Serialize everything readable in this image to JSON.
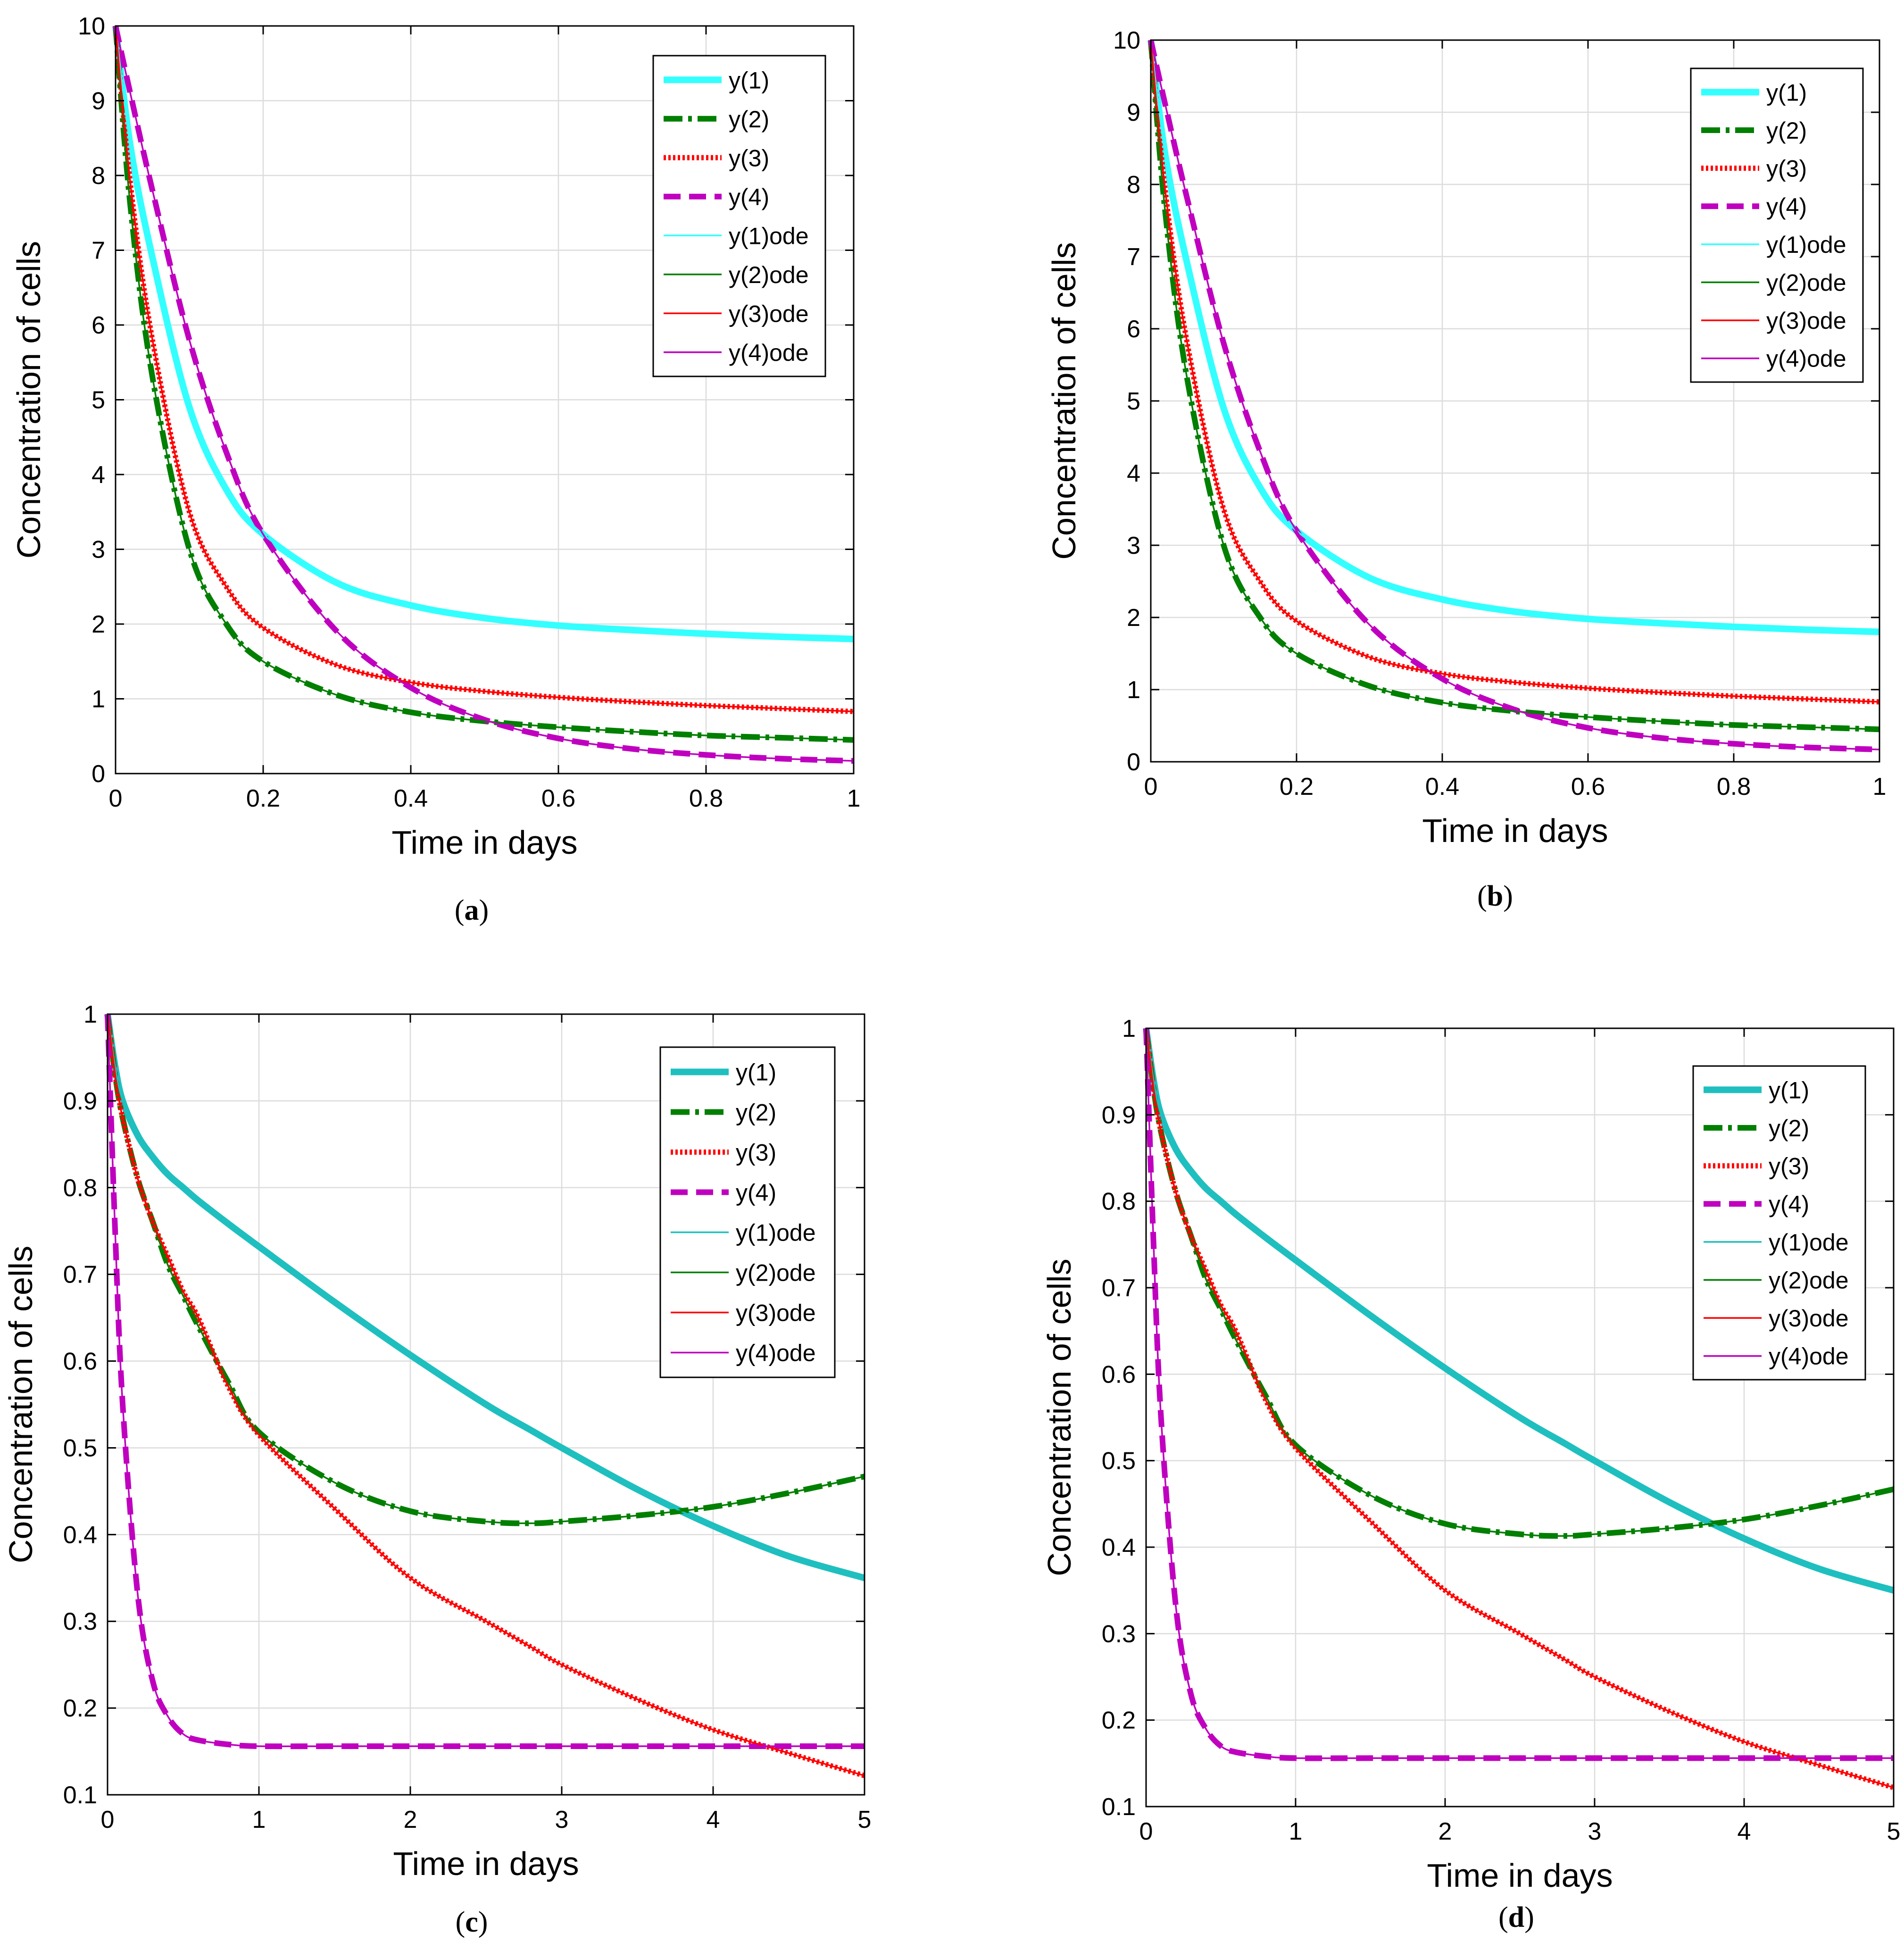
{
  "figure": {
    "panels": [
      {
        "id": "a",
        "caption_letter": "a"
      },
      {
        "id": "b",
        "caption_letter": "b"
      },
      {
        "id": "c",
        "caption_letter": "c"
      },
      {
        "id": "d",
        "caption_letter": "d"
      }
    ]
  },
  "colors": {
    "cyan_bright": "#33FFFF",
    "cyan_dark": "#1FBFBF",
    "green": "#007F00",
    "red": "#FF0000",
    "magenta": "#BF00BF",
    "grid": "#DCDCDC",
    "axis": "#000000"
  },
  "chart_data": [
    {
      "type": "line",
      "panel": "a",
      "xlabel": "Time in days",
      "ylabel": "Concentration of cells",
      "xlim": [
        0,
        1
      ],
      "ylim": [
        0,
        10
      ],
      "xticks": [
        0,
        0.2,
        0.4,
        0.6,
        0.8,
        1
      ],
      "xtick_labels": [
        "0",
        "0.2",
        "0.4",
        "0.6",
        "0.8",
        "1"
      ],
      "yticks": [
        0,
        1,
        2,
        3,
        4,
        5,
        6,
        7,
        8,
        9,
        10
      ],
      "ytick_labels": [
        "0",
        "1",
        "2",
        "3",
        "4",
        "5",
        "6",
        "7",
        "8",
        "9",
        "10"
      ],
      "grid": true,
      "legend": "top-right",
      "x": [
        0,
        0.02,
        0.05,
        0.1,
        0.15,
        0.2,
        0.3,
        0.4,
        0.5,
        0.6,
        0.7,
        0.8,
        0.9,
        1.0
      ],
      "series": [
        {
          "name": "y(1)",
          "values": [
            10,
            8.4,
            6.9,
            4.9,
            3.8,
            3.2,
            2.55,
            2.25,
            2.08,
            1.98,
            1.92,
            1.87,
            1.83,
            1.8
          ],
          "style": "thick-solid",
          "color": "#33FFFF"
        },
        {
          "name": "y(2)",
          "values": [
            10,
            7.6,
            5.3,
            3.0,
            2.0,
            1.5,
            1.05,
            0.82,
            0.7,
            0.62,
            0.56,
            0.51,
            0.48,
            0.45
          ],
          "style": "dashdot",
          "color": "#007F00"
        },
        {
          "name": "y(3)",
          "values": [
            10,
            7.9,
            5.8,
            3.5,
            2.5,
            1.95,
            1.45,
            1.22,
            1.1,
            1.02,
            0.96,
            0.91,
            0.87,
            0.83
          ],
          "style": "dotted",
          "color": "#FF0000"
        },
        {
          "name": "y(4)",
          "values": [
            10,
            9.1,
            7.8,
            5.8,
            4.3,
            3.2,
            1.9,
            1.15,
            0.72,
            0.47,
            0.33,
            0.25,
            0.2,
            0.17
          ],
          "style": "dashed",
          "color": "#BF00BF"
        },
        {
          "name": "y(1)ode",
          "values": [
            10,
            8.4,
            6.9,
            4.9,
            3.8,
            3.2,
            2.55,
            2.25,
            2.08,
            1.98,
            1.92,
            1.87,
            1.83,
            1.8
          ],
          "style": "thin-solid",
          "color": "#33FFFF"
        },
        {
          "name": "y(2)ode",
          "values": [
            10,
            7.6,
            5.3,
            3.0,
            2.0,
            1.5,
            1.05,
            0.82,
            0.7,
            0.62,
            0.56,
            0.51,
            0.48,
            0.45
          ],
          "style": "thin-solid",
          "color": "#007F00"
        },
        {
          "name": "y(3)ode",
          "values": [
            10,
            7.9,
            5.8,
            3.5,
            2.5,
            1.95,
            1.45,
            1.22,
            1.1,
            1.02,
            0.96,
            0.91,
            0.87,
            0.83
          ],
          "style": "thin-solid",
          "color": "#FF0000"
        },
        {
          "name": "y(4)ode",
          "values": [
            10,
            9.1,
            7.8,
            5.8,
            4.3,
            3.2,
            1.9,
            1.15,
            0.72,
            0.47,
            0.33,
            0.25,
            0.2,
            0.17
          ],
          "style": "thin-solid",
          "color": "#BF00BF"
        }
      ]
    },
    {
      "type": "line",
      "panel": "b",
      "xlabel": "Time in days",
      "ylabel": "Concentration of cells",
      "xlim": [
        0,
        1
      ],
      "ylim": [
        0,
        10
      ],
      "xticks": [
        0,
        0.2,
        0.4,
        0.6,
        0.8,
        1
      ],
      "xtick_labels": [
        "0",
        "0.2",
        "0.4",
        "0.6",
        "0.8",
        "1"
      ],
      "yticks": [
        0,
        1,
        2,
        3,
        4,
        5,
        6,
        7,
        8,
        9,
        10
      ],
      "ytick_labels": [
        "0",
        "1",
        "2",
        "3",
        "4",
        "5",
        "6",
        "7",
        "8",
        "9",
        "10"
      ],
      "grid": true,
      "legend": "top-right",
      "x": [
        0,
        0.02,
        0.05,
        0.1,
        0.15,
        0.2,
        0.3,
        0.4,
        0.5,
        0.6,
        0.7,
        0.8,
        0.9,
        1.0
      ],
      "series": [
        {
          "name": "y(1)",
          "values": [
            10,
            8.4,
            6.9,
            4.9,
            3.8,
            3.2,
            2.55,
            2.25,
            2.08,
            1.98,
            1.92,
            1.87,
            1.83,
            1.8
          ],
          "style": "thick-solid",
          "color": "#33FFFF"
        },
        {
          "name": "y(2)",
          "values": [
            10,
            7.6,
            5.3,
            3.0,
            2.0,
            1.5,
            1.05,
            0.82,
            0.7,
            0.62,
            0.56,
            0.51,
            0.48,
            0.45
          ],
          "style": "dashdot",
          "color": "#007F00"
        },
        {
          "name": "y(3)",
          "values": [
            10,
            7.9,
            5.8,
            3.5,
            2.5,
            1.95,
            1.45,
            1.22,
            1.1,
            1.02,
            0.96,
            0.91,
            0.87,
            0.83
          ],
          "style": "dotted",
          "color": "#FF0000"
        },
        {
          "name": "y(4)",
          "values": [
            10,
            9.1,
            7.8,
            5.8,
            4.3,
            3.2,
            1.9,
            1.15,
            0.72,
            0.47,
            0.33,
            0.25,
            0.2,
            0.17
          ],
          "style": "dashed",
          "color": "#BF00BF"
        },
        {
          "name": "y(1)ode",
          "values": [
            10,
            8.4,
            6.9,
            4.9,
            3.8,
            3.2,
            2.55,
            2.25,
            2.08,
            1.98,
            1.92,
            1.87,
            1.83,
            1.8
          ],
          "style": "thin-solid",
          "color": "#33FFFF"
        },
        {
          "name": "y(2)ode",
          "values": [
            10,
            7.6,
            5.3,
            3.0,
            2.0,
            1.5,
            1.05,
            0.82,
            0.7,
            0.62,
            0.56,
            0.51,
            0.48,
            0.45
          ],
          "style": "thin-solid",
          "color": "#007F00"
        },
        {
          "name": "y(3)ode",
          "values": [
            10,
            7.9,
            5.8,
            3.5,
            2.5,
            1.95,
            1.45,
            1.22,
            1.1,
            1.02,
            0.96,
            0.91,
            0.87,
            0.83
          ],
          "style": "thin-solid",
          "color": "#FF0000"
        },
        {
          "name": "y(4)ode",
          "values": [
            10,
            9.1,
            7.8,
            5.8,
            4.3,
            3.2,
            1.9,
            1.15,
            0.72,
            0.47,
            0.33,
            0.25,
            0.2,
            0.17
          ],
          "style": "thin-solid",
          "color": "#BF00BF"
        }
      ]
    },
    {
      "type": "line",
      "panel": "c",
      "xlabel": "Time in days",
      "ylabel": "Concentration of cells",
      "xlim": [
        0,
        5
      ],
      "ylim": [
        0.1,
        1
      ],
      "xticks": [
        0,
        1,
        2,
        3,
        4,
        5
      ],
      "xtick_labels": [
        "0",
        "1",
        "2",
        "3",
        "4",
        "5"
      ],
      "yticks": [
        0.1,
        0.2,
        0.3,
        0.4,
        0.5,
        0.6,
        0.7,
        0.8,
        0.9,
        1
      ],
      "ytick_labels": [
        "0.1",
        "0.2",
        "0.3",
        "0.4",
        "0.5",
        "0.6",
        "0.7",
        "0.8",
        "0.9",
        "1"
      ],
      "grid": true,
      "legend": "top-right",
      "x": [
        0,
        0.05,
        0.1,
        0.2,
        0.3,
        0.4,
        0.5,
        0.6,
        0.8,
        1.0,
        1.5,
        2.0,
        2.5,
        2.8,
        3.0,
        3.5,
        4.0,
        4.5,
        5.0
      ],
      "series": [
        {
          "name": "y(1)",
          "values": [
            1.0,
            0.94,
            0.9,
            0.86,
            0.835,
            0.815,
            0.8,
            0.785,
            0.758,
            0.732,
            0.668,
            0.607,
            0.55,
            0.52,
            0.5,
            0.452,
            0.41,
            0.375,
            0.35
          ],
          "style": "thick-solid",
          "color": "#1FBFBF"
        },
        {
          "name": "y(2)",
          "values": [
            1.0,
            0.93,
            0.88,
            0.81,
            0.76,
            0.71,
            0.675,
            0.64,
            0.575,
            0.518,
            0.46,
            0.427,
            0.415,
            0.413,
            0.415,
            0.422,
            0.432,
            0.448,
            0.467
          ],
          "style": "dashdot",
          "color": "#007F00"
        },
        {
          "name": "y(3)",
          "values": [
            1.0,
            0.93,
            0.88,
            0.81,
            0.76,
            0.72,
            0.68,
            0.65,
            0.57,
            0.515,
            0.43,
            0.35,
            0.3,
            0.27,
            0.25,
            0.21,
            0.175,
            0.148,
            0.122
          ],
          "style": "dotted",
          "color": "#FF0000"
        },
        {
          "name": "y(4)",
          "values": [
            1.0,
            0.75,
            0.55,
            0.33,
            0.23,
            0.19,
            0.17,
            0.163,
            0.158,
            0.156,
            0.156,
            0.156,
            0.156,
            0.156,
            0.156,
            0.156,
            0.156,
            0.156,
            0.156
          ],
          "style": "dashed",
          "color": "#BF00BF"
        },
        {
          "name": "y(1)ode",
          "values": [
            1.0,
            0.94,
            0.9,
            0.86,
            0.835,
            0.815,
            0.8,
            0.785,
            0.758,
            0.732,
            0.668,
            0.607,
            0.55,
            0.52,
            0.5,
            0.452,
            0.41,
            0.375,
            0.35
          ],
          "style": "thin-solid",
          "color": "#1FBFBF"
        },
        {
          "name": "y(2)ode",
          "values": [
            1.0,
            0.93,
            0.88,
            0.81,
            0.76,
            0.71,
            0.675,
            0.64,
            0.575,
            0.518,
            0.46,
            0.427,
            0.415,
            0.413,
            0.415,
            0.422,
            0.432,
            0.448,
            0.467
          ],
          "style": "thin-solid",
          "color": "#007F00"
        },
        {
          "name": "y(3)ode",
          "values": [
            1.0,
            0.93,
            0.88,
            0.81,
            0.76,
            0.72,
            0.68,
            0.65,
            0.57,
            0.515,
            0.43,
            0.35,
            0.3,
            0.27,
            0.25,
            0.21,
            0.175,
            0.148,
            0.122
          ],
          "style": "thin-solid",
          "color": "#FF0000"
        },
        {
          "name": "y(4)ode",
          "values": [
            1.0,
            0.75,
            0.55,
            0.33,
            0.23,
            0.19,
            0.17,
            0.163,
            0.158,
            0.156,
            0.156,
            0.156,
            0.156,
            0.156,
            0.156,
            0.156,
            0.156,
            0.156,
            0.156
          ],
          "style": "thin-solid",
          "color": "#BF00BF"
        }
      ]
    },
    {
      "type": "line",
      "panel": "d",
      "xlabel": "Time in days",
      "ylabel": "Concentration of cells",
      "xlim": [
        0,
        5
      ],
      "ylim": [
        0.1,
        1
      ],
      "xticks": [
        0,
        1,
        2,
        3,
        4,
        5
      ],
      "xtick_labels": [
        "0",
        "1",
        "2",
        "3",
        "4",
        "5"
      ],
      "yticks": [
        0.1,
        0.2,
        0.3,
        0.4,
        0.5,
        0.6,
        0.7,
        0.8,
        0.9,
        1
      ],
      "ytick_labels": [
        "0.1",
        "0.2",
        "0.3",
        "0.4",
        "0.5",
        "0.6",
        "0.7",
        "0.8",
        "0.9",
        "1"
      ],
      "grid": true,
      "legend": "top-right",
      "x": [
        0,
        0.05,
        0.1,
        0.2,
        0.3,
        0.4,
        0.5,
        0.6,
        0.8,
        1.0,
        1.5,
        2.0,
        2.5,
        2.8,
        3.0,
        3.5,
        4.0,
        4.5,
        5.0
      ],
      "series": [
        {
          "name": "y(1)",
          "values": [
            1.0,
            0.94,
            0.9,
            0.86,
            0.835,
            0.815,
            0.8,
            0.785,
            0.758,
            0.732,
            0.668,
            0.607,
            0.55,
            0.52,
            0.5,
            0.452,
            0.41,
            0.375,
            0.35
          ],
          "style": "thick-solid",
          "color": "#1FBFBF"
        },
        {
          "name": "y(2)",
          "values": [
            1.0,
            0.93,
            0.88,
            0.81,
            0.76,
            0.71,
            0.675,
            0.64,
            0.575,
            0.518,
            0.46,
            0.427,
            0.415,
            0.413,
            0.415,
            0.422,
            0.432,
            0.448,
            0.467
          ],
          "style": "dashdot",
          "color": "#007F00"
        },
        {
          "name": "y(3)",
          "values": [
            1.0,
            0.93,
            0.88,
            0.81,
            0.76,
            0.72,
            0.68,
            0.65,
            0.57,
            0.515,
            0.43,
            0.35,
            0.3,
            0.27,
            0.25,
            0.21,
            0.175,
            0.148,
            0.122
          ],
          "style": "dotted",
          "color": "#FF0000"
        },
        {
          "name": "y(4)",
          "values": [
            1.0,
            0.75,
            0.55,
            0.33,
            0.23,
            0.19,
            0.17,
            0.163,
            0.158,
            0.156,
            0.156,
            0.156,
            0.156,
            0.156,
            0.156,
            0.156,
            0.156,
            0.156,
            0.156
          ],
          "style": "dashed",
          "color": "#BF00BF"
        },
        {
          "name": "y(1)ode",
          "values": [
            1.0,
            0.94,
            0.9,
            0.86,
            0.835,
            0.815,
            0.8,
            0.785,
            0.758,
            0.732,
            0.668,
            0.607,
            0.55,
            0.52,
            0.5,
            0.452,
            0.41,
            0.375,
            0.35
          ],
          "style": "thin-solid",
          "color": "#1FBFBF"
        },
        {
          "name": "y(2)ode",
          "values": [
            1.0,
            0.93,
            0.88,
            0.81,
            0.76,
            0.71,
            0.675,
            0.64,
            0.575,
            0.518,
            0.46,
            0.427,
            0.415,
            0.413,
            0.415,
            0.422,
            0.432,
            0.448,
            0.467
          ],
          "style": "thin-solid",
          "color": "#007F00"
        },
        {
          "name": "y(3)ode",
          "values": [
            1.0,
            0.93,
            0.88,
            0.81,
            0.76,
            0.72,
            0.68,
            0.65,
            0.57,
            0.515,
            0.43,
            0.35,
            0.3,
            0.27,
            0.25,
            0.21,
            0.175,
            0.148,
            0.122
          ],
          "style": "thin-solid",
          "color": "#FF0000"
        },
        {
          "name": "y(4)ode",
          "values": [
            1.0,
            0.75,
            0.55,
            0.33,
            0.23,
            0.19,
            0.17,
            0.163,
            0.158,
            0.156,
            0.156,
            0.156,
            0.156,
            0.156,
            0.156,
            0.156,
            0.156,
            0.156,
            0.156
          ],
          "style": "thin-solid",
          "color": "#BF00BF"
        }
      ]
    }
  ]
}
